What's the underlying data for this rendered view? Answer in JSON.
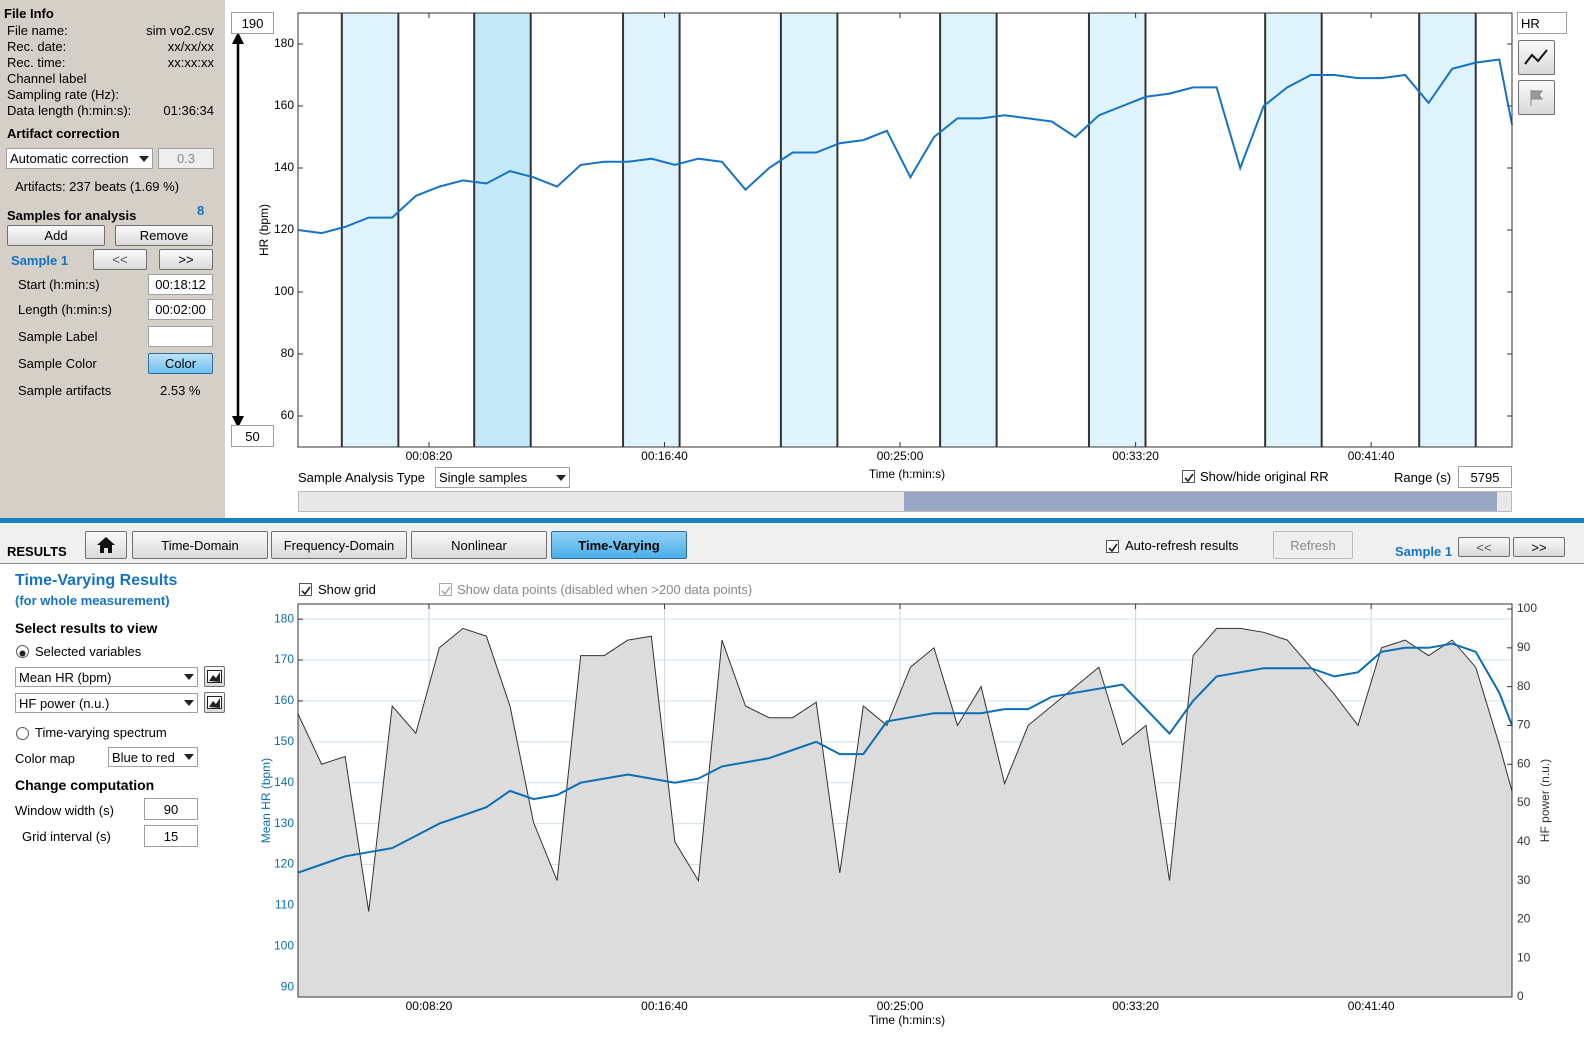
{
  "file_info": {
    "title": "File Info",
    "rows": [
      {
        "label": "File name:",
        "value": "sim vo2.csv"
      },
      {
        "label": "Rec. date:",
        "value": "xx/xx/xx"
      },
      {
        "label": "Rec. time:",
        "value": "xx:xx:xx"
      },
      {
        "label": "Channel label"
      },
      {
        "label": "Sampling rate (Hz):"
      },
      {
        "label": "Data length (h:min:s):",
        "value": "01:36:34"
      }
    ]
  },
  "artifact_correction": {
    "title": "Artifact correction",
    "method": "Automatic correction",
    "threshold": 0.3,
    "summary": "Artifacts: 237 beats (1.69 %)"
  },
  "samples": {
    "title": "Samples for analysis",
    "count": 8,
    "add": "Add",
    "remove": "Remove",
    "current": "Sample 1",
    "prev": "<<",
    "next": ">>",
    "start_label": "Start (h:min:s)",
    "start": "00:18:12",
    "length_label": "Length (h:min:s)",
    "length": "00:02:00",
    "label_label": "Sample Label",
    "color_label": "Sample Color",
    "color_button": "Color",
    "artifacts_label": "Sample artifacts",
    "artifacts": "2.53 %"
  },
  "controls": {
    "analysis_type_label": "Sample Analysis Type",
    "analysis_type": "Single samples",
    "show_rr": "Show/hide original RR",
    "range_label": "Range (s)",
    "range": 5795,
    "channel": "HR"
  },
  "results_bar": {
    "title": "RESULTS",
    "tabs": [
      "Time-Domain",
      "Frequency-Domain",
      "Nonlinear",
      "Time-Varying"
    ],
    "auto_refresh": "Auto-refresh results",
    "refresh": "Refresh",
    "sample": "Sample 1",
    "prev": "<<",
    "next": ">>"
  },
  "tv_panel": {
    "title": "Time-Varying Results",
    "subtitle": "(for whole measurement)",
    "select_title": "Select results to view",
    "selected_variables": "Selected variables",
    "spectrum": "Time-varying spectrum",
    "colormap_label": "Color map",
    "colormap": "Blue to red",
    "change_title": "Change computation",
    "window_label": "Window width (s)",
    "window": 90,
    "grid_label": "Grid interval (s)",
    "grid_interval": 15
  },
  "chart_data": [
    {
      "type": "line",
      "y_label": "HR (bpm)",
      "x_label": "Time (h:min:s)",
      "xlim": [
        222,
        2799
      ],
      "xticks": [
        {
          "value": 500,
          "label": "00:08:20"
        },
        {
          "value": 1000,
          "label": "00:16:40"
        },
        {
          "value": 1500,
          "label": "00:25:00"
        },
        {
          "value": 2000,
          "label": "00:33:20"
        },
        {
          "value": 2500,
          "label": "00:41:40"
        }
      ],
      "ylim": [
        50,
        190
      ],
      "yticks": [
        60,
        80,
        100,
        120,
        140,
        160,
        180
      ],
      "grid": false,
      "color": "#1673c4",
      "sample_starts": [
        315,
        596,
        912,
        1247,
        1585,
        1901,
        2275,
        2602
      ],
      "sample_length": 120,
      "band_color": "#dff3fc",
      "selected_band_color": "#c5e8f8",
      "selected_sample": 1,
      "x": [
        222,
        272,
        322,
        372,
        422,
        472,
        522,
        572,
        622,
        672,
        722,
        772,
        822,
        872,
        922,
        972,
        1022,
        1072,
        1122,
        1172,
        1222,
        1272,
        1322,
        1372,
        1422,
        1472,
        1522,
        1572,
        1622,
        1672,
        1722,
        1772,
        1822,
        1872,
        1922,
        1972,
        2022,
        2072,
        2122,
        2172,
        2222,
        2272,
        2322,
        2372,
        2422,
        2472,
        2522,
        2572,
        2622,
        2672,
        2722,
        2772,
        2799
      ],
      "values": [
        120,
        119,
        121,
        124,
        124,
        131,
        134,
        136,
        135,
        139,
        137,
        134,
        141,
        142,
        142,
        143,
        141,
        143,
        142,
        133,
        140,
        145,
        145,
        148,
        149,
        152,
        137,
        150,
        156,
        156,
        157,
        156,
        155,
        150,
        157,
        160,
        163,
        164,
        166,
        166,
        140,
        160,
        166,
        170,
        170,
        169,
        169,
        170,
        161,
        172,
        174,
        175,
        154
      ]
    },
    {
      "type": "line",
      "show_grid": "Show grid",
      "show_points": "Show data points (disabled when >200 data points)",
      "x_label": "Time (h:min:s)",
      "y_label": "Mean HR (bpm)",
      "y2_label": "HF power (n.u.)",
      "xlim": [
        222,
        2799
      ],
      "xticks": [
        {
          "value": 500,
          "label": "00:08:20"
        },
        {
          "value": 1000,
          "label": "00:16:40"
        },
        {
          "value": 1500,
          "label": "00:25:00"
        },
        {
          "value": 2000,
          "label": "00:33:20"
        },
        {
          "value": 2500,
          "label": "00:41:40"
        }
      ],
      "ylim": [
        87.6,
        183.7
      ],
      "yticks": [
        90,
        100,
        110,
        120,
        130,
        140,
        150,
        160,
        170,
        180
      ],
      "y2lim": [
        0,
        101.3
      ],
      "y2ticks": [
        0,
        10,
        20,
        30,
        40,
        50,
        60,
        70,
        80,
        90,
        100
      ],
      "grid": true,
      "x": [
        222,
        272,
        322,
        372,
        422,
        472,
        522,
        572,
        622,
        672,
        722,
        772,
        822,
        872,
        922,
        972,
        1022,
        1072,
        1122,
        1172,
        1222,
        1272,
        1322,
        1372,
        1422,
        1472,
        1522,
        1572,
        1622,
        1672,
        1722,
        1772,
        1822,
        1872,
        1922,
        1972,
        2022,
        2072,
        2122,
        2172,
        2222,
        2272,
        2322,
        2372,
        2422,
        2472,
        2522,
        2572,
        2622,
        2672,
        2722,
        2772,
        2799
      ],
      "series": [
        {
          "name": "HF power (n.u.)",
          "color": "#333333",
          "fill": "#dcdcdc",
          "axis": "y2",
          "values": [
            73,
            60,
            62,
            22,
            75,
            68,
            90,
            95,
            93,
            75,
            45,
            30,
            88,
            88,
            92,
            93,
            40,
            30,
            92,
            75,
            72,
            72,
            76,
            32,
            75,
            70,
            85,
            90,
            70,
            80,
            55,
            70,
            75,
            80,
            85,
            65,
            70,
            30,
            88,
            95,
            95,
            94,
            92,
            85,
            78,
            70,
            90,
            92,
            88,
            92,
            85,
            65,
            53
          ]
        },
        {
          "name": "Mean HR (bpm)",
          "color": "#0a6eb4",
          "values": [
            118,
            120,
            122,
            123,
            124,
            127,
            130,
            132,
            134,
            138,
            136,
            137,
            140,
            141,
            142,
            141,
            140,
            141,
            144,
            145,
            146,
            148,
            150,
            147,
            147,
            155,
            156,
            157,
            157,
            157,
            158,
            158,
            161,
            162,
            163,
            164,
            158,
            152,
            160,
            166,
            167,
            168,
            168,
            168,
            166,
            167,
            172,
            173,
            173,
            174,
            172,
            162,
            154
          ]
        }
      ]
    }
  ]
}
